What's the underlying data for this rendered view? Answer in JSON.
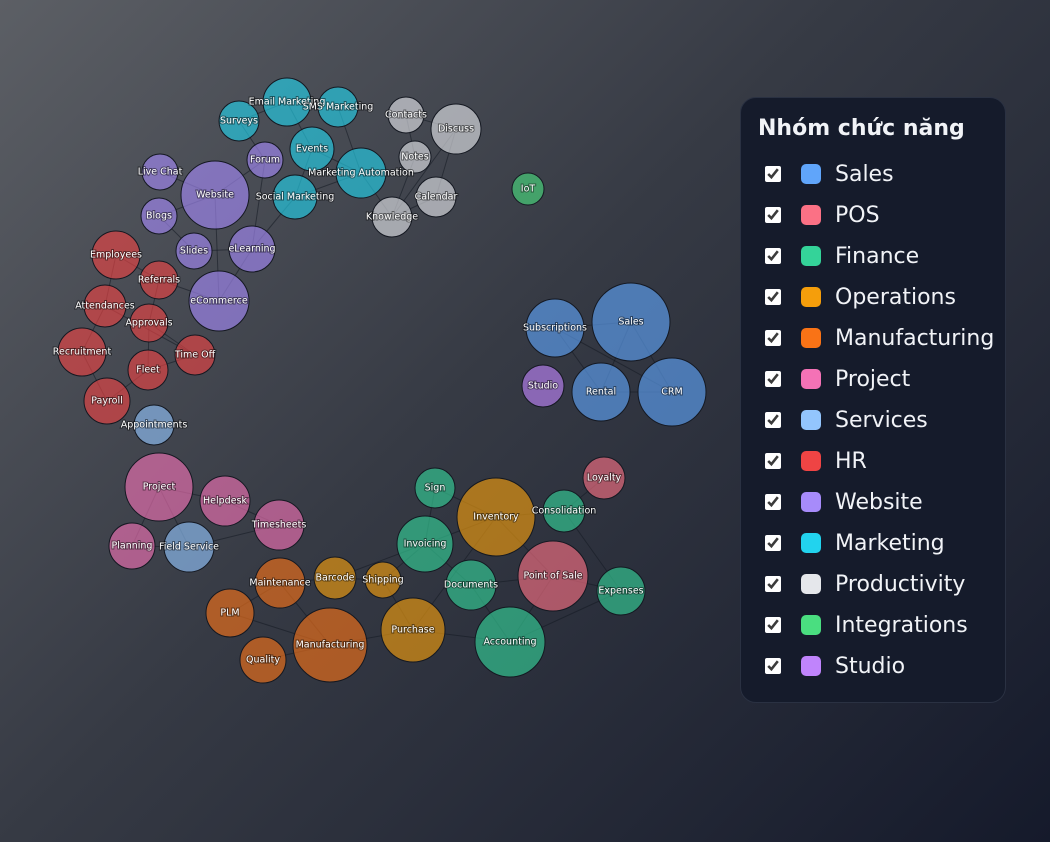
{
  "legend": {
    "title": "Nhóm chức năng",
    "items": [
      {
        "name": "Sales",
        "color": "#60a5fa"
      },
      {
        "name": "POS",
        "color": "#fb7185"
      },
      {
        "name": "Finance",
        "color": "#34d399"
      },
      {
        "name": "Operations",
        "color": "#f59e0b"
      },
      {
        "name": "Manufacturing",
        "color": "#f97316"
      },
      {
        "name": "Project",
        "color": "#f472b6"
      },
      {
        "name": "Services",
        "color": "#93c5fd"
      },
      {
        "name": "HR",
        "color": "#ef4444"
      },
      {
        "name": "Website",
        "color": "#a78bfa"
      },
      {
        "name": "Marketing",
        "color": "#22d3ee"
      },
      {
        "name": "Productivity",
        "color": "#e5e7eb"
      },
      {
        "name": "Integrations",
        "color": "#4ade80"
      },
      {
        "name": "Studio",
        "color": "#c084fc"
      }
    ]
  },
  "nodes": [
    {
      "label": "Email Marketing",
      "group": "Marketing"
    },
    {
      "label": "SMS Marketing",
      "group": "Marketing"
    },
    {
      "label": "Surveys",
      "group": "Marketing"
    },
    {
      "label": "Events",
      "group": "Marketing"
    },
    {
      "label": "Marketing Automation",
      "group": "Marketing"
    },
    {
      "label": "Social Marketing",
      "group": "Marketing"
    },
    {
      "label": "Forum",
      "group": "Website"
    },
    {
      "label": "Live Chat",
      "group": "Website"
    },
    {
      "label": "Website",
      "group": "Website"
    },
    {
      "label": "Blogs",
      "group": "Website"
    },
    {
      "label": "Slides",
      "group": "Website"
    },
    {
      "label": "eLearning",
      "group": "Website"
    },
    {
      "label": "eCommerce",
      "group": "Website"
    },
    {
      "label": "Contacts",
      "group": "Productivity"
    },
    {
      "label": "Discuss",
      "group": "Productivity"
    },
    {
      "label": "Notes",
      "group": "Productivity"
    },
    {
      "label": "Calendar",
      "group": "Productivity"
    },
    {
      "label": "Knowledge",
      "group": "Productivity"
    },
    {
      "label": "IoT",
      "group": "Integrations"
    },
    {
      "label": "Subscriptions",
      "group": "Sales"
    },
    {
      "label": "Sales",
      "group": "Sales"
    },
    {
      "label": "Rental",
      "group": "Sales"
    },
    {
      "label": "CRM",
      "group": "Sales"
    },
    {
      "label": "Studio",
      "group": "Studio"
    },
    {
      "label": "Employees",
      "group": "HR"
    },
    {
      "label": "Referrals",
      "group": "HR"
    },
    {
      "label": "Attendances",
      "group": "HR"
    },
    {
      "label": "Approvals",
      "group": "HR"
    },
    {
      "label": "Recruitment",
      "group": "HR"
    },
    {
      "label": "Time Off",
      "group": "HR"
    },
    {
      "label": "Fleet",
      "group": "HR"
    },
    {
      "label": "Payroll",
      "group": "HR"
    },
    {
      "label": "Appointments",
      "group": "Services"
    },
    {
      "label": "Field Service",
      "group": "Services"
    },
    {
      "label": "Project",
      "group": "Project"
    },
    {
      "label": "Helpdesk",
      "group": "Project"
    },
    {
      "label": "Timesheets",
      "group": "Project"
    },
    {
      "label": "Planning",
      "group": "Project"
    },
    {
      "label": "Sign",
      "group": "Finance"
    },
    {
      "label": "Invoicing",
      "group": "Finance"
    },
    {
      "label": "Documents",
      "group": "Finance"
    },
    {
      "label": "Accounting",
      "group": "Finance"
    },
    {
      "label": "Consolidation",
      "group": "Finance"
    },
    {
      "label": "Expenses",
      "group": "Finance"
    },
    {
      "label": "Inventory",
      "group": "Operations"
    },
    {
      "label": "Barcode",
      "group": "Operations"
    },
    {
      "label": "Shipping",
      "group": "Operations"
    },
    {
      "label": "Purchase",
      "group": "Operations"
    },
    {
      "label": "Point of Sale",
      "group": "POS"
    },
    {
      "label": "Loyalty",
      "group": "POS"
    },
    {
      "label": "Maintenance",
      "group": "Manufacturing"
    },
    {
      "label": "PLM",
      "group": "Manufacturing"
    },
    {
      "label": "Manufacturing",
      "group": "Manufacturing"
    },
    {
      "label": "Quality",
      "group": "Manufacturing"
    }
  ]
}
